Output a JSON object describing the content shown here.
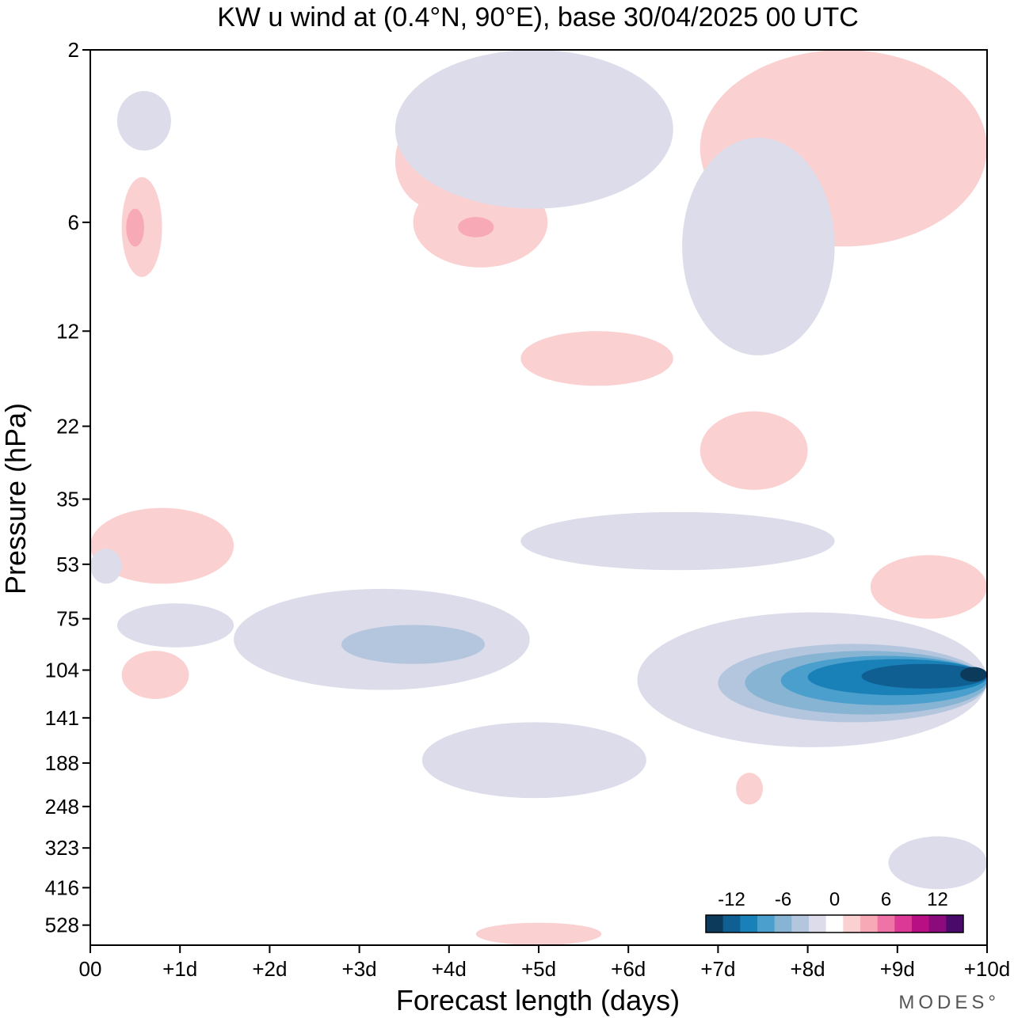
{
  "chart_data": {
    "type": "heatmap",
    "title": "KW u wind at (0.4°N, 90°E),  base 30/04/2025  00 UTC",
    "xlabel": "Forecast length (days)",
    "ylabel": "Pressure (hPa)",
    "x_ticks": [
      "00",
      "+1d",
      "+2d",
      "+3d",
      "+4d",
      "+5d",
      "+6d",
      "+7d",
      "+8d",
      "+9d",
      "+10d"
    ],
    "y_ticks": [
      "2",
      "6",
      "12",
      "22",
      "35",
      "53",
      "75",
      "104",
      "141",
      "188",
      "248",
      "323",
      "416",
      "528"
    ],
    "xlim": [
      0,
      10
    ],
    "ylim": [
      2,
      600
    ],
    "y_scale": "log (reversed)",
    "colorbar": {
      "labels": [
        "-12",
        "-6",
        "0",
        "6",
        "12"
      ],
      "levels": [
        -14,
        -12,
        -10,
        -8,
        -6,
        -4,
        -2,
        0,
        2,
        4,
        6,
        8,
        10,
        12,
        14
      ],
      "colors": [
        "#0b3a5a",
        "#0f5f92",
        "#1a80b8",
        "#4a9fcc",
        "#88b4d4",
        "#b4c6de",
        "#dcdcea",
        "#ffffff",
        "#fbd0d0",
        "#f7a9b6",
        "#ef73a6",
        "#dc3895",
        "#b90f85",
        "#8b0a7c",
        "#4a0a6a"
      ],
      "placement": "bottom-right"
    },
    "regions": [
      {
        "level": "+2",
        "day": [
          0.0,
          1.6
        ],
        "p": [
          37,
          60
        ],
        "color": "#fbd0d0"
      },
      {
        "level": "+2",
        "day": [
          0.35,
          0.8
        ],
        "p": [
          4.5,
          8.5
        ],
        "color": "#fbd0d0"
      },
      {
        "level": "+4",
        "day": [
          0.4,
          0.6
        ],
        "p": [
          5.5,
          7
        ],
        "color": "#f7a9b6"
      },
      {
        "level": "+2",
        "day": [
          0.35,
          1.1
        ],
        "p": [
          92,
          125
        ],
        "color": "#fbd0d0"
      },
      {
        "level": "+2",
        "day": [
          3.4,
          4.3
        ],
        "p": [
          3.0,
          5.5
        ],
        "color": "#fbd0d0"
      },
      {
        "level": "+2",
        "day": [
          3.6,
          5.1
        ],
        "p": [
          4.5,
          8.0
        ],
        "color": "#fbd0d0"
      },
      {
        "level": "+4",
        "day": [
          4.1,
          4.5
        ],
        "p": [
          5.8,
          6.6
        ],
        "color": "#f7a9b6"
      },
      {
        "level": "+2",
        "day": [
          4.8,
          6.5
        ],
        "p": [
          12,
          17
        ],
        "color": "#fbd0d0"
      },
      {
        "level": "+2",
        "day": [
          6.8,
          10
        ],
        "p": [
          2.0,
          7.0
        ],
        "color": "#fbd0d0"
      },
      {
        "level": "+2",
        "day": [
          6.8,
          8.0
        ],
        "p": [
          20,
          33
        ],
        "color": "#fbd0d0"
      },
      {
        "level": "+2",
        "day": [
          8.7,
          10
        ],
        "p": [
          50,
          75
        ],
        "color": "#fbd0d0"
      },
      {
        "level": "+2",
        "day": [
          7.2,
          7.5
        ],
        "p": [
          200,
          245
        ],
        "color": "#fbd0d0"
      },
      {
        "level": "+2",
        "day": [
          4.3,
          5.7
        ],
        "p": [
          520,
          600
        ],
        "color": "#fbd0d0"
      },
      {
        "level": "-2",
        "day": [
          0.3,
          1.6
        ],
        "p": [
          68,
          90
        ],
        "color": "#dcdcea"
      },
      {
        "level": "-2",
        "day": [
          1.6,
          4.9
        ],
        "p": [
          62,
          118
        ],
        "color": "#dcdcea"
      },
      {
        "level": "-4",
        "day": [
          2.8,
          4.4
        ],
        "p": [
          78,
          100
        ],
        "color": "#b4c6de"
      },
      {
        "level": "-2",
        "day": [
          3.7,
          6.2
        ],
        "p": [
          145,
          235
        ],
        "color": "#dcdcea"
      },
      {
        "level": "-2",
        "day": [
          4.8,
          8.3
        ],
        "p": [
          38,
          55
        ],
        "color": "#dcdcea"
      },
      {
        "level": "-2",
        "day": [
          3.4,
          6.5
        ],
        "p": [
          2.0,
          5.5
        ],
        "color": "#dcdcea"
      },
      {
        "level": "-2",
        "day": [
          6.6,
          8.3
        ],
        "p": [
          3.5,
          14
        ],
        "color": "#dcdcea"
      },
      {
        "level": "-2",
        "day": [
          0.3,
          0.9
        ],
        "p": [
          2.6,
          3.8
        ],
        "color": "#dcdcea"
      },
      {
        "level": "-2",
        "day": [
          0.0,
          0.35
        ],
        "p": [
          48,
          60
        ],
        "color": "#dcdcea"
      },
      {
        "level": "-2",
        "day": [
          8.9,
          10
        ],
        "p": [
          300,
          420
        ],
        "color": "#dcdcea"
      },
      {
        "level": "-2",
        "day": [
          6.1,
          10
        ],
        "p": [
          72,
          170
        ],
        "color": "#dcdcea"
      },
      {
        "level": "-4",
        "day": [
          7.0,
          10
        ],
        "p": [
          88,
          145
        ],
        "color": "#b4c6de"
      },
      {
        "level": "-6",
        "day": [
          7.3,
          10
        ],
        "p": [
          92,
          138
        ],
        "color": "#88b4d4"
      },
      {
        "level": "-8",
        "day": [
          7.7,
          10
        ],
        "p": [
          95,
          130
        ],
        "color": "#4a9fcc"
      },
      {
        "level": "-10",
        "day": [
          8.0,
          10
        ],
        "p": [
          97,
          122
        ],
        "color": "#1a80b8"
      },
      {
        "level": "-12",
        "day": [
          8.6,
          10
        ],
        "p": [
          100,
          117
        ],
        "color": "#0f5f92"
      },
      {
        "level": "-14",
        "day": [
          9.7,
          10
        ],
        "p": [
          102,
          112
        ],
        "color": "#0b3a5a"
      }
    ]
  },
  "brand": "MODES°"
}
